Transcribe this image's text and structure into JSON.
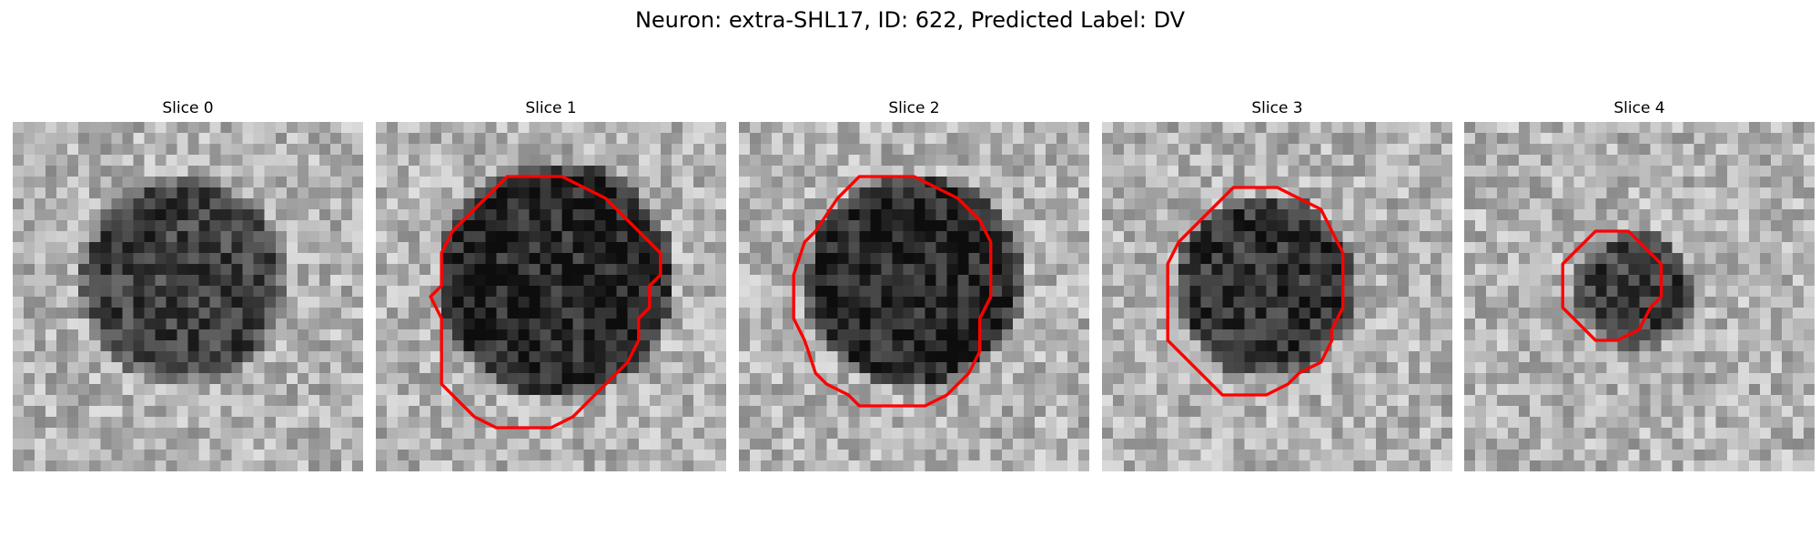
{
  "figure": {
    "title": "Neuron: extra-SHL17, ID: 622, Predicted Label: DV"
  },
  "panels": [
    {
      "title": "Slice 0"
    },
    {
      "title": "Slice 1"
    },
    {
      "title": "Slice 2"
    },
    {
      "title": "Slice 3"
    },
    {
      "title": "Slice 4"
    }
  ],
  "colors": {
    "contour": "#ff0000",
    "background": "#ffffff"
  }
}
